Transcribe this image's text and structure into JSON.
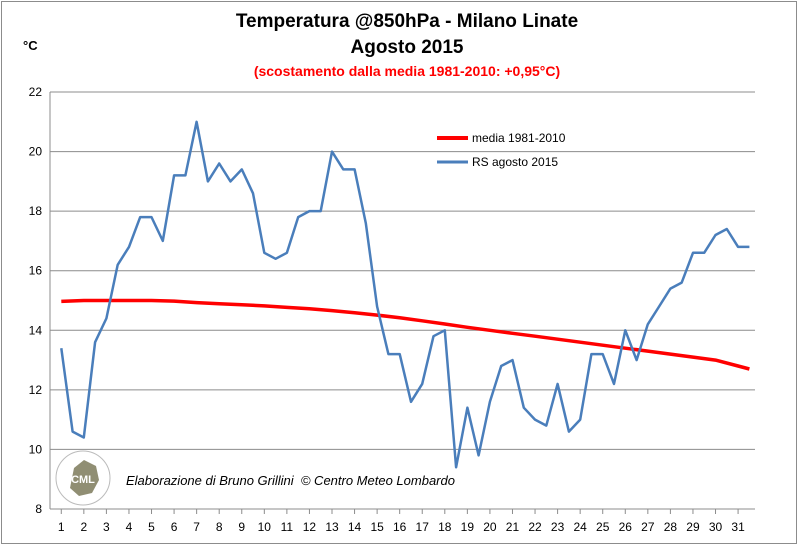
{
  "chart_data": {
    "type": "line",
    "title": "Temperatura @850hPa - Milano Linate",
    "subtitle": "Agosto 2015",
    "note": "(scostamento dalla media 1981-2010: +0,95°C)",
    "ylabel": "°C",
    "ylim": [
      8,
      22
    ],
    "yticks": [
      8,
      10,
      12,
      14,
      16,
      18,
      20,
      22
    ],
    "xlim": [
      1,
      31.5
    ],
    "xticks": [
      1,
      2,
      3,
      4,
      5,
      6,
      7,
      8,
      9,
      10,
      11,
      12,
      13,
      14,
      15,
      16,
      17,
      18,
      19,
      20,
      21,
      22,
      23,
      24,
      25,
      26,
      27,
      28,
      29,
      30,
      31
    ],
    "grid": "horizontal",
    "legend": "top-right",
    "series": [
      {
        "name": "media 1981-2010",
        "color": "#ff0000",
        "x": [
          1,
          2,
          3,
          4,
          5,
          6,
          7,
          8,
          9,
          10,
          11,
          12,
          13,
          14,
          15,
          16,
          17,
          18,
          19,
          20,
          21,
          22,
          23,
          24,
          25,
          26,
          27,
          28,
          29,
          30,
          31,
          31.5
        ],
        "values": [
          14.97,
          15.0,
          15.0,
          15.0,
          15.0,
          14.98,
          14.93,
          14.89,
          14.86,
          14.82,
          14.77,
          14.72,
          14.66,
          14.59,
          14.51,
          14.42,
          14.32,
          14.21,
          14.1,
          14.0,
          13.9,
          13.8,
          13.7,
          13.6,
          13.5,
          13.4,
          13.3,
          13.2,
          13.1,
          13.0,
          12.8,
          12.7
        ]
      },
      {
        "name": "RS agosto 2015",
        "color": "#4a7ebb",
        "x": [
          1,
          1.5,
          2,
          2.5,
          3,
          3.5,
          4,
          4.5,
          5,
          5.5,
          6,
          6.5,
          7,
          7.5,
          8,
          8.5,
          9,
          9.5,
          10,
          10.5,
          11,
          11.5,
          12,
          12.5,
          13,
          13.5,
          14,
          14.5,
          15,
          15.5,
          16,
          16.5,
          17,
          17.5,
          18,
          18.5,
          19,
          19.5,
          20,
          20.5,
          21,
          21.5,
          22,
          22.5,
          23,
          23.5,
          24,
          24.5,
          25,
          25.5,
          26,
          26.5,
          27,
          27.5,
          28,
          28.5,
          29,
          29.5,
          30,
          30.5,
          31,
          31.5
        ],
        "values": [
          13.4,
          10.6,
          10.4,
          13.6,
          14.4,
          16.2,
          16.8,
          17.8,
          17.8,
          17.0,
          19.2,
          19.2,
          21.0,
          19.0,
          19.6,
          19.0,
          19.4,
          18.6,
          16.6,
          16.4,
          16.6,
          17.8,
          18.0,
          18.0,
          20.0,
          19.4,
          19.4,
          17.6,
          14.8,
          13.2,
          13.2,
          11.6,
          12.2,
          13.8,
          14.0,
          9.4,
          11.4,
          9.8,
          11.6,
          12.8,
          13.0,
          11.4,
          11.0,
          10.8,
          12.2,
          10.6,
          11.0,
          13.2,
          13.2,
          12.2,
          14.0,
          13.0,
          14.2,
          14.8,
          15.4,
          15.6,
          16.6,
          16.6,
          17.2,
          17.4,
          16.8,
          16.8
        ]
      }
    ]
  },
  "credit": {
    "text": "Elaborazione di Bruno Grillini  © Centro Meteo Lombardo",
    "logo_text": "CENTRO METEO LOMBARDO",
    "logo_abbr": "CML"
  }
}
